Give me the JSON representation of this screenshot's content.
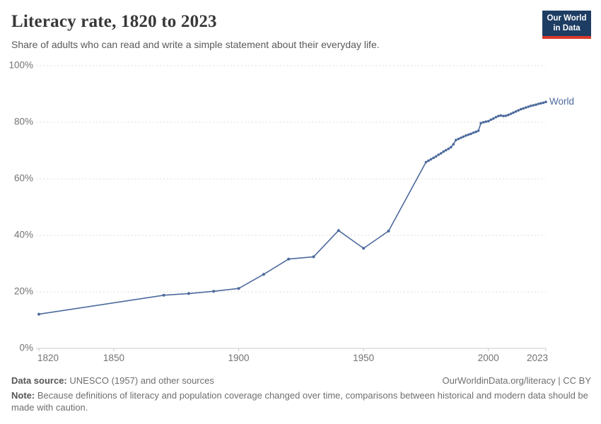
{
  "logo": {
    "line1": "Our World",
    "line2": "in Data",
    "navy": "#1d3d63",
    "red": "#d93a2d"
  },
  "footer": {
    "source_label": "Data source:",
    "source_value": "UNESCO (1957) and other sources",
    "link": "OurWorldinData.org/literacy | CC BY",
    "note_label": "Note:",
    "note_value": "Because definitions of literacy and population coverage changed over time, comparisons between historical and modern data should be made with caution."
  },
  "chart_data": {
    "type": "line",
    "title": "Literacy rate, 1820 to 2023",
    "subtitle": "Share of adults who can read and write a simple statement about their everyday life.",
    "xlabel": "",
    "ylabel": "",
    "xlim": [
      1820,
      2023
    ],
    "ylim": [
      0,
      100
    ],
    "x_ticks": [
      1820,
      1850,
      1900,
      1950,
      2000,
      2023
    ],
    "y_ticks": [
      0,
      20,
      40,
      60,
      80,
      100
    ],
    "y_suffix": "%",
    "grid": "horizontal-dashed",
    "legend_position": "line-end-label",
    "colors": {
      "accent": "#4C6A9C",
      "grid": "#dcdcdc",
      "axis": "#c8c8c8",
      "tick_text": "#737373"
    },
    "series": [
      {
        "name": "World",
        "color": "#4C6A9C",
        "points": [
          [
            1820,
            12.1
          ],
          [
            1870,
            18.8
          ],
          [
            1880,
            19.4
          ],
          [
            1890,
            20.2
          ],
          [
            1900,
            21.2
          ],
          [
            1910,
            26.2
          ],
          [
            1920,
            31.6
          ],
          [
            1930,
            32.4
          ],
          [
            1940,
            41.7
          ],
          [
            1950,
            35.4
          ],
          [
            1960,
            41.5
          ],
          [
            1975,
            65.9
          ],
          [
            1976,
            66.4
          ],
          [
            1977,
            66.9
          ],
          [
            1978,
            67.4
          ],
          [
            1979,
            67.9
          ],
          [
            1980,
            68.5
          ],
          [
            1981,
            69.0
          ],
          [
            1982,
            69.6
          ],
          [
            1983,
            70.1
          ],
          [
            1984,
            70.6
          ],
          [
            1985,
            71.2
          ],
          [
            1986,
            72.2
          ],
          [
            1987,
            73.7
          ],
          [
            1988,
            74.1
          ],
          [
            1989,
            74.5
          ],
          [
            1990,
            74.9
          ],
          [
            1991,
            75.3
          ],
          [
            1992,
            75.6
          ],
          [
            1993,
            75.9
          ],
          [
            1994,
            76.3
          ],
          [
            1995,
            76.6
          ],
          [
            1996,
            77.0
          ],
          [
            1997,
            79.7
          ],
          [
            1998,
            80.0
          ],
          [
            1999,
            80.2
          ],
          [
            2000,
            80.4
          ],
          [
            2001,
            80.9
          ],
          [
            2002,
            81.3
          ],
          [
            2003,
            81.8
          ],
          [
            2004,
            82.2
          ],
          [
            2005,
            82.4
          ],
          [
            2006,
            82.2
          ],
          [
            2007,
            82.3
          ],
          [
            2008,
            82.6
          ],
          [
            2009,
            83.0
          ],
          [
            2010,
            83.4
          ],
          [
            2011,
            83.8
          ],
          [
            2012,
            84.2
          ],
          [
            2013,
            84.6
          ],
          [
            2014,
            84.9
          ],
          [
            2015,
            85.2
          ],
          [
            2016,
            85.5
          ],
          [
            2017,
            85.8
          ],
          [
            2018,
            86.0
          ],
          [
            2019,
            86.2
          ],
          [
            2020,
            86.5
          ],
          [
            2021,
            86.7
          ],
          [
            2022,
            86.9
          ],
          [
            2023,
            87.2
          ]
        ]
      }
    ]
  }
}
